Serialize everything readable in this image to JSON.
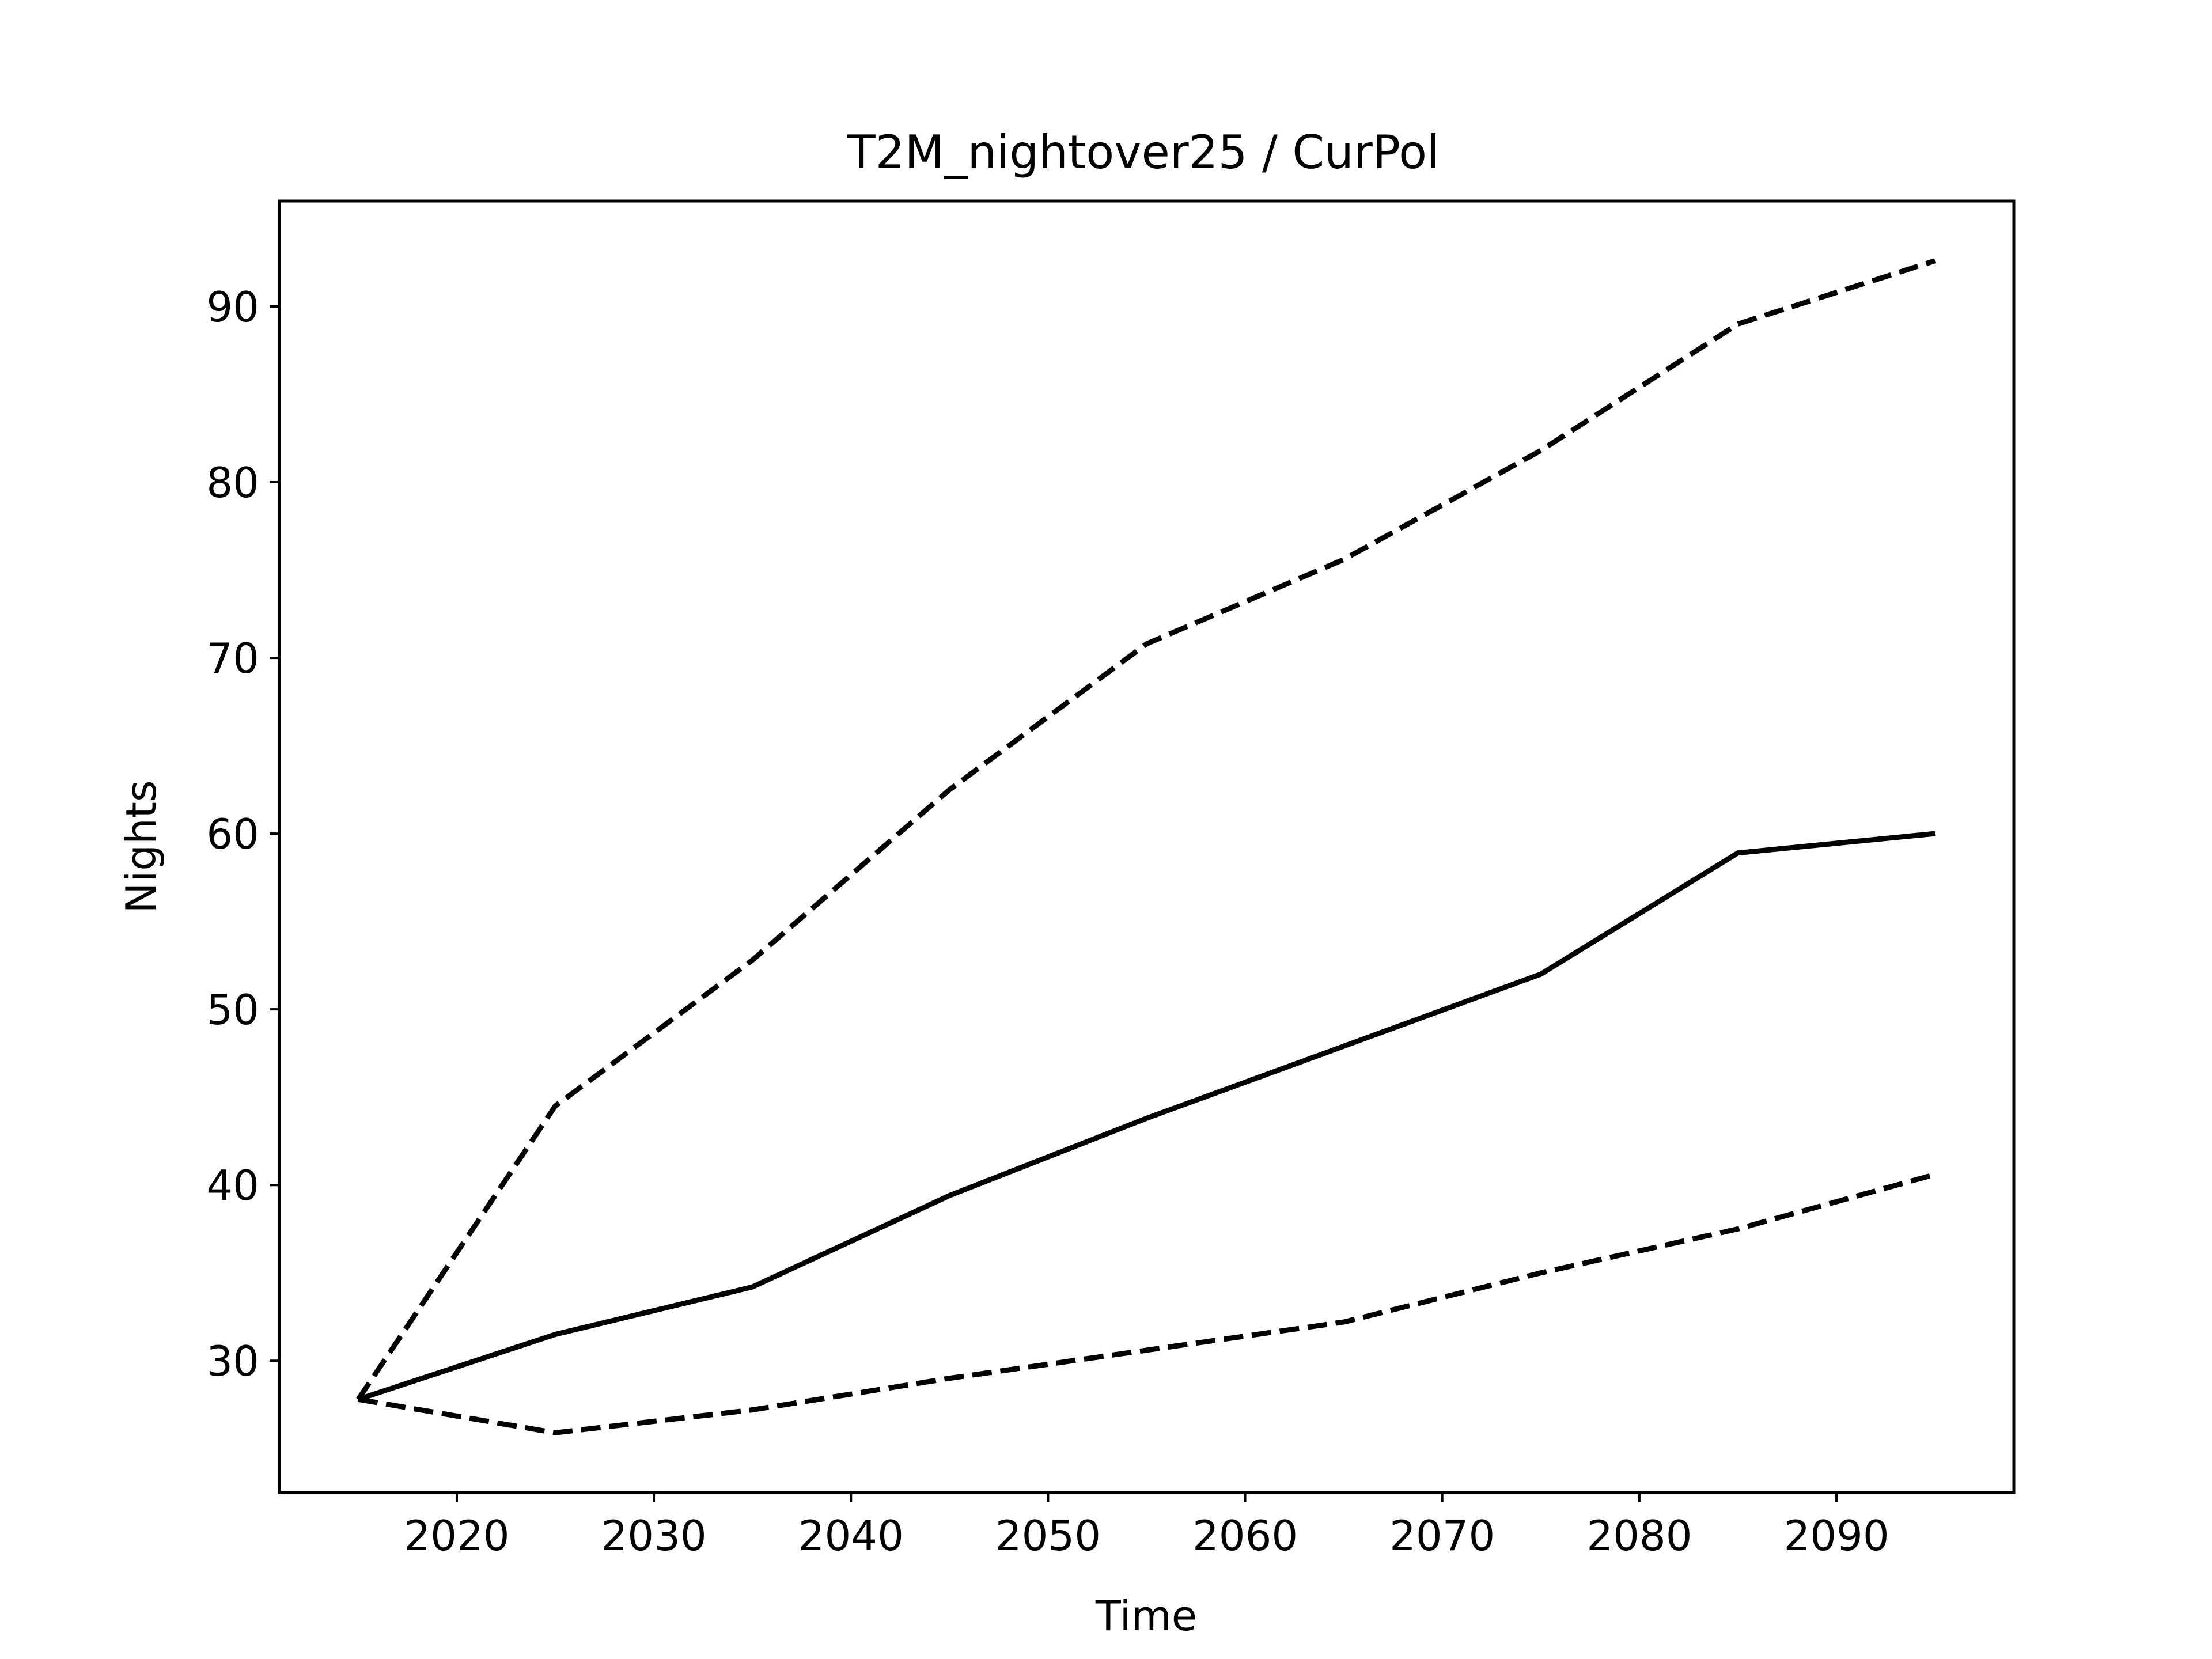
{
  "chart_data": {
    "type": "line",
    "title": "T2M_nightover25 / CurPol",
    "xlabel": "Time",
    "ylabel": "Nights",
    "xlim": [
      2011,
      2099
    ],
    "ylim": [
      22.5,
      96
    ],
    "x_ticks": [
      2020,
      2030,
      2040,
      2050,
      2060,
      2070,
      2080,
      2090
    ],
    "y_ticks": [
      30,
      40,
      50,
      60,
      70,
      80,
      90
    ],
    "grid": false,
    "x": [
      2015,
      2025,
      2035,
      2045,
      2055,
      2065,
      2075,
      2085,
      2095
    ],
    "series": [
      {
        "style": "solid",
        "color": "#000000",
        "values": [
          27.8,
          31.5,
          34.2,
          39.4,
          43.8,
          47.9,
          52.0,
          58.9,
          60.0
        ]
      },
      {
        "style": "dashed",
        "color": "#000000",
        "values": [
          27.8,
          44.5,
          52.8,
          62.5,
          70.8,
          75.6,
          81.8,
          89.0,
          92.6
        ]
      },
      {
        "style": "dashed",
        "color": "#000000",
        "values": [
          27.8,
          25.9,
          27.2,
          29.0,
          30.6,
          32.2,
          35.0,
          37.5,
          40.6
        ]
      }
    ]
  }
}
